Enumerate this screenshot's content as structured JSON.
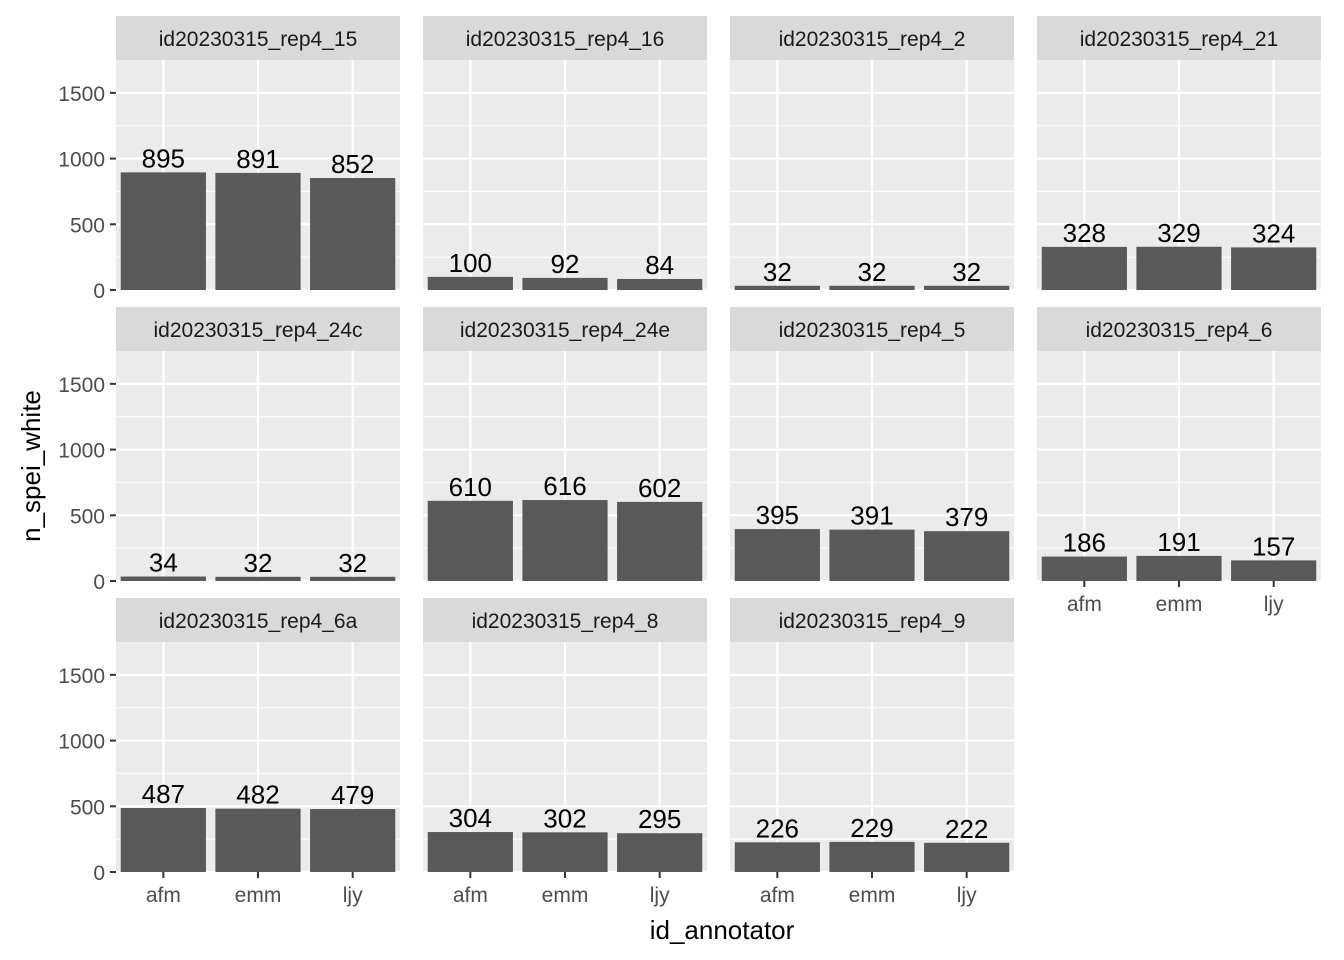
{
  "chart_data": {
    "type": "bar",
    "xlabel": "id_annotator",
    "ylabel": "n_spei_white",
    "categories": [
      "afm",
      "emm",
      "ljy"
    ],
    "ylim": [
      0,
      1750
    ],
    "yticks": [
      0,
      500,
      1000,
      1500
    ],
    "grid": true,
    "bar_color": "#595959",
    "panel_bg": "#EBEBEB",
    "strip_bg": "#D9D9D9",
    "facets": [
      {
        "name": "id20230315_rep4_15",
        "values": [
          895,
          891,
          852
        ]
      },
      {
        "name": "id20230315_rep4_16",
        "values": [
          100,
          92,
          84
        ]
      },
      {
        "name": "id20230315_rep4_2",
        "values": [
          32,
          32,
          32
        ]
      },
      {
        "name": "id20230315_rep4_21",
        "values": [
          328,
          329,
          324
        ]
      },
      {
        "name": "id20230315_rep4_24c",
        "values": [
          34,
          32,
          32
        ]
      },
      {
        "name": "id20230315_rep4_24e",
        "values": [
          610,
          616,
          602
        ]
      },
      {
        "name": "id20230315_rep4_5",
        "values": [
          395,
          391,
          379
        ]
      },
      {
        "name": "id20230315_rep4_6",
        "values": [
          186,
          191,
          157
        ]
      },
      {
        "name": "id20230315_rep4_6a",
        "values": [
          487,
          482,
          479
        ]
      },
      {
        "name": "id20230315_rep4_8",
        "values": [
          304,
          302,
          295
        ]
      },
      {
        "name": "id20230315_rep4_9",
        "values": [
          226,
          229,
          222
        ]
      }
    ]
  }
}
